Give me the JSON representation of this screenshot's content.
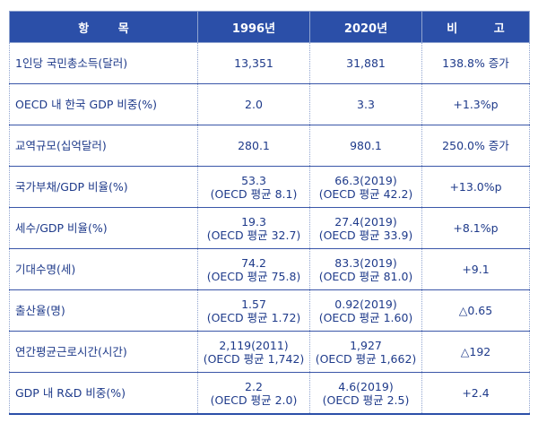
{
  "header": {
    "item": "항 목",
    "y1996": "1996년",
    "y2020": "2020년",
    "note": "비 고"
  },
  "rows": [
    {
      "item": "1인당 국민총소득(달러)",
      "v1996": "13,351",
      "v1996_sub": "",
      "v2020": "31,881",
      "v2020_sub": "",
      "note": "138.8% 증가"
    },
    {
      "item": "OECD 내 한국 GDP 비중(%)",
      "v1996": "2.0",
      "v1996_sub": "",
      "v2020": "3.3",
      "v2020_sub": "",
      "note": "+1.3%p"
    },
    {
      "item": "교역규모(십억달러)",
      "v1996": "280.1",
      "v1996_sub": "",
      "v2020": "980.1",
      "v2020_sub": "",
      "note": "250.0% 증가"
    },
    {
      "item": "국가부채/GDP 비율(%)",
      "v1996": "53.3",
      "v1996_sub": "(OECD 평균 8.1)",
      "v2020": "66.3(2019)",
      "v2020_sub": "(OECD 평균 42.2)",
      "note": "+13.0%p"
    },
    {
      "item": "세수/GDP 비율(%)",
      "v1996": "19.3",
      "v1996_sub": "(OECD 평균 32.7)",
      "v2020": "27.4(2019)",
      "v2020_sub": "(OECD 평균 33.9)",
      "note": "+8.1%p"
    },
    {
      "item": "기대수명(세)",
      "v1996": "74.2",
      "v1996_sub": "(OECD 평균 75.8)",
      "v2020": "83.3(2019)",
      "v2020_sub": "(OECD 평균 81.0)",
      "note": "+9.1"
    },
    {
      "item": "출산율(명)",
      "v1996": "1.57",
      "v1996_sub": "(OECD 평균 1.72)",
      "v2020": "0.92(2019)",
      "v2020_sub": "(OECD 평균 1.60)",
      "note": "△0.65"
    },
    {
      "item": "연간평균근로시간(시간)",
      "v1996": "2,119(2011)",
      "v1996_sub": "(OECD 평균 1,742)",
      "v2020": "1,927",
      "v2020_sub": "(OECD 평균 1,662)",
      "note": "△192"
    },
    {
      "item": "GDP 내 R&D 비중(%)",
      "v1996": "2.2",
      "v1996_sub": "(OECD 평균 2.0)",
      "v2020": "4.6(2019)",
      "v2020_sub": "(OECD 평균 2.5)",
      "note": "+2.4"
    }
  ]
}
